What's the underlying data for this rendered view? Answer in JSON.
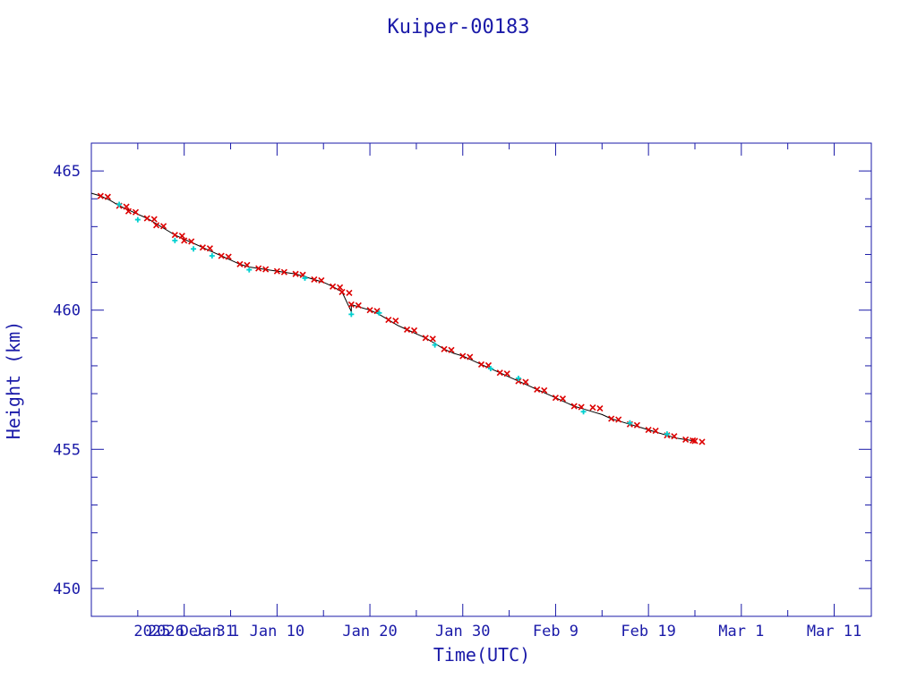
{
  "chart_data": {
    "type": "line",
    "title": "Kuiper-00183",
    "xlabel": "Time(UTC)",
    "ylabel": "Height (km)",
    "xlim": [
      "2025-12-21",
      "2026-03-15"
    ],
    "ylim": [
      449,
      466
    ],
    "y_ticks": [
      450,
      455,
      460,
      465
    ],
    "x_ticks": [
      {
        "date": "2025-12-31",
        "label": "2025 Dec 31"
      },
      {
        "date": "2026-01-01",
        "label": "2026 Jan 1"
      },
      {
        "date": "2026-01-10",
        "label": "Jan 10"
      },
      {
        "date": "2026-01-20",
        "label": "Jan 20"
      },
      {
        "date": "2026-01-30",
        "label": "Jan 30"
      },
      {
        "date": "2026-02-09",
        "label": "Feb  9"
      },
      {
        "date": "2026-02-19",
        "label": "Feb 19"
      },
      {
        "date": "2026-03-01",
        "label": "Mar  1"
      },
      {
        "date": "2026-03-11",
        "label": "Mar 11"
      }
    ],
    "grid": false,
    "series": [
      {
        "color": "#000000",
        "style": "line",
        "points": [
          [
            "2025-12-21",
            464.2
          ],
          [
            "2025-12-22",
            464.1
          ],
          [
            "2025-12-23",
            463.95
          ],
          [
            "2025-12-24",
            463.75
          ],
          [
            "2025-12-25",
            463.6
          ],
          [
            "2025-12-26",
            463.45
          ],
          [
            "2025-12-27",
            463.3
          ],
          [
            "2025-12-28",
            463.1
          ],
          [
            "2025-12-29",
            462.9
          ],
          [
            "2025-12-30",
            462.7
          ],
          [
            "2025-12-31",
            462.55
          ],
          [
            "2026-01-01",
            462.4
          ],
          [
            "2026-01-02",
            462.25
          ],
          [
            "2026-01-03",
            462.1
          ],
          [
            "2026-01-04",
            461.95
          ],
          [
            "2026-01-05",
            461.8
          ],
          [
            "2026-01-06",
            461.65
          ],
          [
            "2026-01-07",
            461.55
          ],
          [
            "2026-01-08",
            461.5
          ],
          [
            "2026-01-09",
            461.45
          ],
          [
            "2026-01-10",
            461.4
          ],
          [
            "2026-01-11",
            461.35
          ],
          [
            "2026-01-12",
            461.3
          ],
          [
            "2026-01-13",
            461.2
          ],
          [
            "2026-01-14",
            461.1
          ],
          [
            "2026-01-15",
            461.0
          ],
          [
            "2026-01-16",
            460.85
          ],
          [
            "2026-01-17",
            460.65
          ],
          [
            "2026-01-18",
            459.95
          ],
          [
            "2026-01-18",
            460.2
          ],
          [
            "2026-01-19",
            460.1
          ],
          [
            "2026-01-20",
            460.0
          ],
          [
            "2026-01-21",
            459.85
          ],
          [
            "2026-01-22",
            459.65
          ],
          [
            "2026-01-23",
            459.45
          ],
          [
            "2026-01-24",
            459.3
          ],
          [
            "2026-01-25",
            459.15
          ],
          [
            "2026-01-26",
            459.0
          ],
          [
            "2026-01-27",
            458.8
          ],
          [
            "2026-01-28",
            458.6
          ],
          [
            "2026-01-29",
            458.45
          ],
          [
            "2026-01-30",
            458.35
          ],
          [
            "2026-01-31",
            458.2
          ],
          [
            "2026-02-01",
            458.05
          ],
          [
            "2026-02-02",
            457.9
          ],
          [
            "2026-02-03",
            457.75
          ],
          [
            "2026-02-04",
            457.6
          ],
          [
            "2026-02-05",
            457.45
          ],
          [
            "2026-02-06",
            457.3
          ],
          [
            "2026-02-07",
            457.15
          ],
          [
            "2026-02-08",
            457.0
          ],
          [
            "2026-02-09",
            456.85
          ],
          [
            "2026-02-10",
            456.7
          ],
          [
            "2026-02-11",
            456.55
          ],
          [
            "2026-02-12",
            456.45
          ],
          [
            "2026-02-13",
            456.35
          ],
          [
            "2026-02-14",
            456.25
          ],
          [
            "2026-02-15",
            456.1
          ],
          [
            "2026-02-16",
            456.0
          ],
          [
            "2026-02-17",
            455.9
          ],
          [
            "2026-02-18",
            455.8
          ],
          [
            "2026-02-19",
            455.7
          ],
          [
            "2026-02-20",
            455.6
          ],
          [
            "2026-02-21",
            455.5
          ],
          [
            "2026-02-22",
            455.4
          ],
          [
            "2026-02-23",
            455.35
          ],
          [
            "2026-02-24",
            455.3
          ]
        ]
      },
      {
        "color": "#dd0000",
        "style": "markers-x",
        "points": [
          [
            "2025-12-22",
            464.1
          ],
          [
            "2025-12-24",
            463.75
          ],
          [
            "2025-12-25",
            463.55
          ],
          [
            "2025-12-27",
            463.3
          ],
          [
            "2025-12-28",
            463.05
          ],
          [
            "2025-12-30",
            462.7
          ],
          [
            "2025-12-31",
            462.5
          ],
          [
            "2026-01-02",
            462.25
          ],
          [
            "2026-01-04",
            461.95
          ],
          [
            "2026-01-06",
            461.65
          ],
          [
            "2026-01-08",
            461.5
          ],
          [
            "2026-01-10",
            461.4
          ],
          [
            "2026-01-12",
            461.3
          ],
          [
            "2026-01-14",
            461.1
          ],
          [
            "2026-01-16",
            460.85
          ],
          [
            "2026-01-17",
            460.65
          ],
          [
            "2026-01-18",
            460.2
          ],
          [
            "2026-01-20",
            460.0
          ],
          [
            "2026-01-22",
            459.65
          ],
          [
            "2026-01-24",
            459.3
          ],
          [
            "2026-01-26",
            459.0
          ],
          [
            "2026-01-28",
            458.6
          ],
          [
            "2026-01-30",
            458.35
          ],
          [
            "2026-02-01",
            458.05
          ],
          [
            "2026-02-03",
            457.75
          ],
          [
            "2026-02-05",
            457.45
          ],
          [
            "2026-02-07",
            457.15
          ],
          [
            "2026-02-09",
            456.85
          ],
          [
            "2026-02-11",
            456.55
          ],
          [
            "2026-02-13",
            456.5
          ],
          [
            "2026-02-15",
            456.1
          ],
          [
            "2026-02-17",
            455.9
          ],
          [
            "2026-02-19",
            455.7
          ],
          [
            "2026-02-21",
            455.5
          ],
          [
            "2026-02-23",
            455.35
          ],
          [
            "2026-02-24",
            455.3
          ]
        ]
      },
      {
        "color": "#00d0d0",
        "style": "markers-plus",
        "points": [
          [
            "2025-12-24",
            463.8
          ],
          [
            "2025-12-26",
            463.25
          ],
          [
            "2025-12-30",
            462.5
          ],
          [
            "2026-01-01",
            462.2
          ],
          [
            "2026-01-03",
            461.95
          ],
          [
            "2026-01-07",
            461.45
          ],
          [
            "2026-01-13",
            461.15
          ],
          [
            "2026-01-18",
            459.85
          ],
          [
            "2026-01-21",
            459.9
          ],
          [
            "2026-01-27",
            458.75
          ],
          [
            "2026-02-02",
            457.9
          ],
          [
            "2026-02-05",
            457.55
          ],
          [
            "2026-02-12",
            456.35
          ],
          [
            "2026-02-17",
            455.95
          ],
          [
            "2026-02-21",
            455.55
          ]
        ]
      }
    ]
  }
}
